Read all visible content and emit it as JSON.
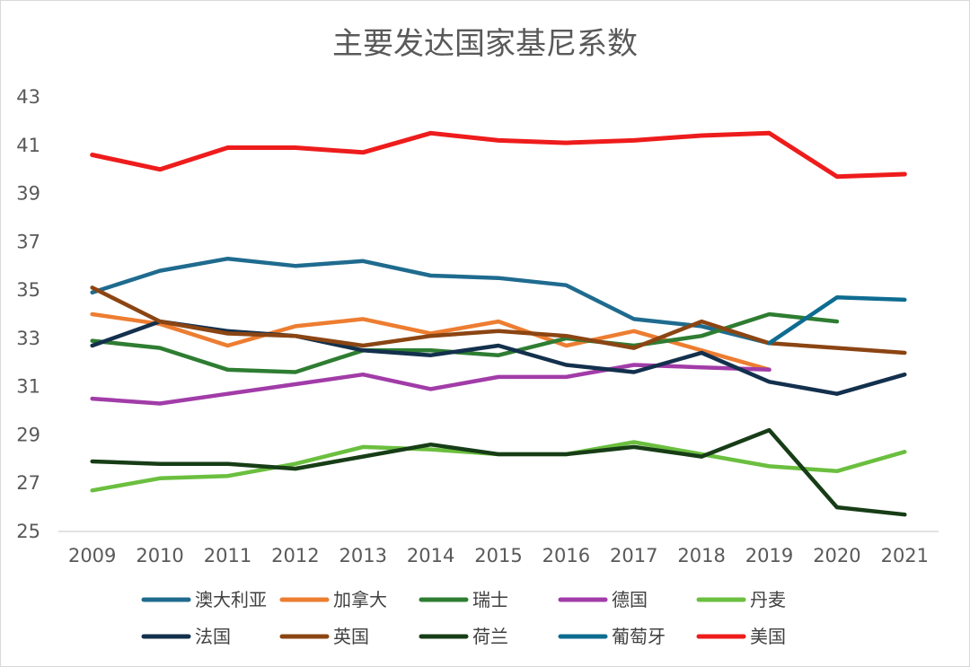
{
  "chart_data": {
    "type": "line",
    "title": "主要发达国家基尼系数",
    "xlabel": "",
    "ylabel": "",
    "x": [
      "2009",
      "2010",
      "2011",
      "2012",
      "2013",
      "2014",
      "2015",
      "2016",
      "2017",
      "2018",
      "2019",
      "2020",
      "2021"
    ],
    "ylim": [
      25,
      43
    ],
    "yticks": [
      25,
      27,
      29,
      31,
      33,
      35,
      37,
      39,
      41,
      43
    ],
    "grid": false,
    "legend_position": "bottom",
    "series": [
      {
        "name": "澳大利亚",
        "color": "#1f6b8f",
        "values": [
          34.9,
          35.8,
          36.3,
          36.0,
          36.2,
          35.6,
          35.5,
          35.2,
          33.8,
          33.5,
          32.8,
          null,
          null
        ]
      },
      {
        "name": "加拿大",
        "color": "#ed7d31",
        "values": [
          34.0,
          33.6,
          32.7,
          33.5,
          33.8,
          33.2,
          33.7,
          32.7,
          33.3,
          32.5,
          31.7,
          null,
          null
        ]
      },
      {
        "name": "瑞士",
        "color": "#2e7d32",
        "values": [
          32.9,
          32.6,
          31.7,
          31.6,
          32.5,
          32.5,
          32.3,
          33.0,
          32.7,
          33.1,
          34.0,
          33.7,
          null
        ]
      },
      {
        "name": "德国",
        "color": "#a13ca8",
        "values": [
          30.5,
          30.3,
          30.7,
          31.1,
          31.5,
          30.9,
          31.4,
          31.4,
          31.9,
          31.8,
          31.7,
          null,
          null
        ]
      },
      {
        "name": "丹麦",
        "color": "#6bbf3f",
        "values": [
          26.7,
          27.2,
          27.3,
          27.8,
          28.5,
          28.4,
          28.2,
          28.2,
          28.7,
          28.2,
          27.7,
          27.5,
          28.3
        ]
      },
      {
        "name": "法国",
        "color": "#13304d",
        "values": [
          32.7,
          33.7,
          33.3,
          33.1,
          32.5,
          32.3,
          32.7,
          31.9,
          31.6,
          32.4,
          31.2,
          30.7,
          31.5
        ]
      },
      {
        "name": "英国",
        "color": "#8b4513",
        "values": [
          35.1,
          33.7,
          33.2,
          33.1,
          32.7,
          33.1,
          33.3,
          33.1,
          32.6,
          33.7,
          32.8,
          32.6,
          32.4
        ]
      },
      {
        "name": "荷兰",
        "color": "#173d17",
        "values": [
          27.9,
          27.8,
          27.8,
          27.6,
          28.1,
          28.6,
          28.2,
          28.2,
          28.5,
          28.1,
          29.2,
          26.0,
          25.7
        ]
      },
      {
        "name": "葡萄牙",
        "color": "#0e6c91",
        "values": [
          null,
          null,
          null,
          null,
          null,
          null,
          null,
          null,
          null,
          null,
          32.8,
          34.7,
          34.6
        ]
      },
      {
        "name": "美国",
        "color": "#ee1c1c",
        "values": [
          40.6,
          40.0,
          40.9,
          40.9,
          40.7,
          41.5,
          41.2,
          41.1,
          41.2,
          41.4,
          41.5,
          39.7,
          39.8
        ]
      }
    ]
  }
}
